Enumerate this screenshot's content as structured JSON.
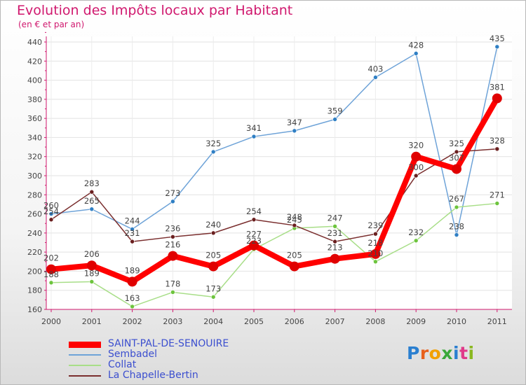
{
  "title": "Evolution des Impôts locaux par Habitant",
  "subtitle": "(en € et par an)",
  "logo": {
    "letters": [
      "P",
      "r",
      "o",
      "x",
      "i",
      "t",
      "i"
    ],
    "colors": [
      "#2a7fd0",
      "#e8601c",
      "#f2a000",
      "#3aa83a",
      "#2a7fd0",
      "#e03a8a",
      "#8ab820"
    ]
  },
  "chart_data": {
    "type": "line",
    "title": "Evolution des Impôts locaux par Habitant",
    "subtitle": "(en € et par an)",
    "xlabel": "",
    "ylabel": "",
    "ylim": [
      160,
      440
    ],
    "yticks": [
      160,
      180,
      200,
      220,
      240,
      260,
      280,
      300,
      320,
      340,
      360,
      380,
      400,
      420,
      440
    ],
    "categories": [
      "2000",
      "2001",
      "2002",
      "2003",
      "2004",
      "2005",
      "2006",
      "2007",
      "2008",
      "2009",
      "2010",
      "2011"
    ],
    "series": [
      {
        "name": "Sembadel",
        "color": "#6ea3d8",
        "dot": "#2f7fc4",
        "values": [
          260,
          265,
          244,
          273,
          325,
          341,
          347,
          359,
          403,
          428,
          238,
          435
        ]
      },
      {
        "name": "Collat",
        "color": "#a8de88",
        "dot": "#6dc43d",
        "values": [
          188,
          189,
          163,
          178,
          173,
          223,
          245,
          247,
          210,
          232,
          267,
          271
        ]
      },
      {
        "name": "La Chapelle-Bertin",
        "color": "#7a2e2e",
        "dot": "#6a1f1f",
        "values": [
          254,
          283,
          231,
          236,
          240,
          254,
          248,
          231,
          239,
          300,
          325,
          328
        ]
      },
      {
        "name": "SAINT-PAL-DE-SENOUIRE",
        "color": "#ff0000",
        "dot": "#e00000",
        "highlight": true,
        "values": [
          202,
          206,
          189,
          216,
          205,
          227,
          205,
          213,
          218,
          320,
          307,
          381
        ]
      }
    ],
    "legend": [
      "SAINT-PAL-DE-SENOUIRE",
      "Sembadel",
      "Collat",
      "La Chapelle-Bertin"
    ],
    "legend_placement": "bottom-left"
  }
}
